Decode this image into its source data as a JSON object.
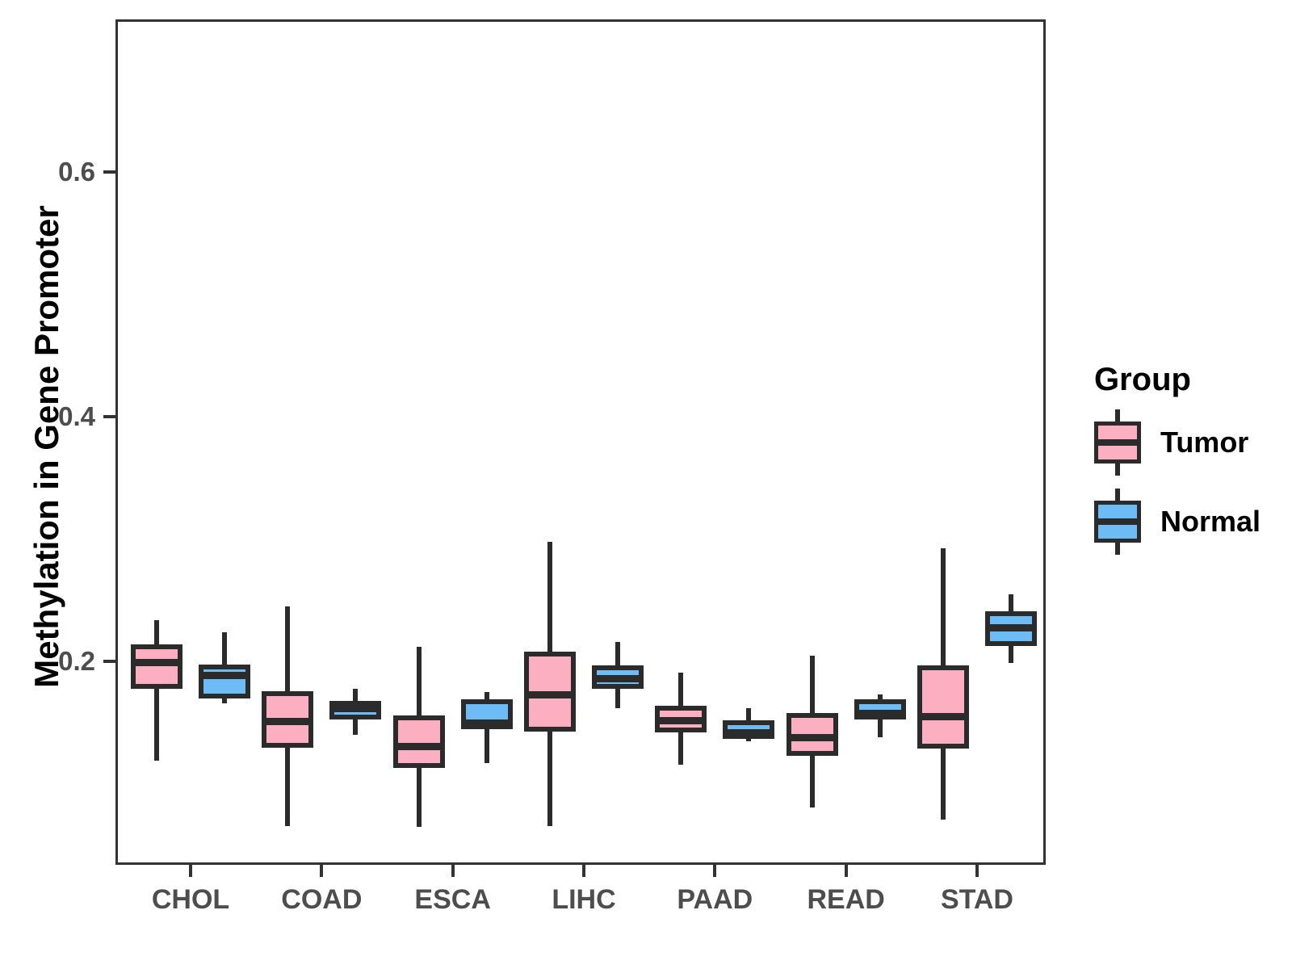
{
  "chart_data": {
    "type": "boxplot",
    "title": "",
    "xlabel": "",
    "ylabel": "Methylation in Gene Promoter",
    "categories": [
      "CHOL",
      "COAD",
      "ESCA",
      "LIHC",
      "PAAD",
      "READ",
      "STAD"
    ],
    "y_ticks": [
      0.2,
      0.4,
      0.6
    ],
    "ylim": [
      0.034,
      0.725
    ],
    "grid": false,
    "legend": {
      "title": "Group",
      "position": "right",
      "items": [
        {
          "label": "Tumor",
          "color": "#FBAFC1"
        },
        {
          "label": "Normal",
          "color": "#6DBCF6"
        }
      ]
    },
    "series": [
      {
        "name": "Tumor",
        "color": "#FBAFC1",
        "boxes": [
          {
            "category": "CHOL",
            "low": 0.119,
            "q1": 0.178,
            "median": 0.199,
            "q3": 0.214,
            "high": 0.234
          },
          {
            "category": "COAD",
            "low": 0.066,
            "q1": 0.13,
            "median": 0.151,
            "q3": 0.176,
            "high": 0.245
          },
          {
            "category": "ESCA",
            "low": 0.065,
            "q1": 0.113,
            "median": 0.131,
            "q3": 0.156,
            "high": 0.212
          },
          {
            "category": "LIHC",
            "low": 0.066,
            "q1": 0.143,
            "median": 0.173,
            "q3": 0.208,
            "high": 0.298
          },
          {
            "category": "PAAD",
            "low": 0.116,
            "q1": 0.142,
            "median": 0.152,
            "q3": 0.164,
            "high": 0.191
          },
          {
            "category": "READ",
            "low": 0.081,
            "q1": 0.123,
            "median": 0.138,
            "q3": 0.158,
            "high": 0.205
          },
          {
            "category": "STAD",
            "low": 0.071,
            "q1": 0.129,
            "median": 0.155,
            "q3": 0.197,
            "high": 0.293
          }
        ]
      },
      {
        "name": "Normal",
        "color": "#6DBCF6",
        "boxes": [
          {
            "category": "CHOL",
            "low": 0.166,
            "q1": 0.17,
            "median": 0.189,
            "q3": 0.198,
            "high": 0.224
          },
          {
            "category": "COAD",
            "low": 0.14,
            "q1": 0.153,
            "median": 0.162,
            "q3": 0.168,
            "high": 0.178
          },
          {
            "category": "ESCA",
            "low": 0.117,
            "q1": 0.145,
            "median": 0.15,
            "q3": 0.169,
            "high": 0.175
          },
          {
            "category": "LIHC",
            "low": 0.162,
            "q1": 0.178,
            "median": 0.186,
            "q3": 0.197,
            "high": 0.216
          },
          {
            "category": "PAAD",
            "low": 0.135,
            "q1": 0.137,
            "median": 0.142,
            "q3": 0.152,
            "high": 0.162
          },
          {
            "category": "READ",
            "low": 0.138,
            "q1": 0.153,
            "median": 0.158,
            "q3": 0.169,
            "high": 0.173
          },
          {
            "category": "STAD",
            "low": 0.199,
            "q1": 0.213,
            "median": 0.228,
            "q3": 0.241,
            "high": 0.255
          }
        ]
      }
    ],
    "styles": {
      "box_stroke": "#2B2B2B",
      "panel_border": "#333333",
      "axis_text_color": "#4D4D4D"
    }
  }
}
